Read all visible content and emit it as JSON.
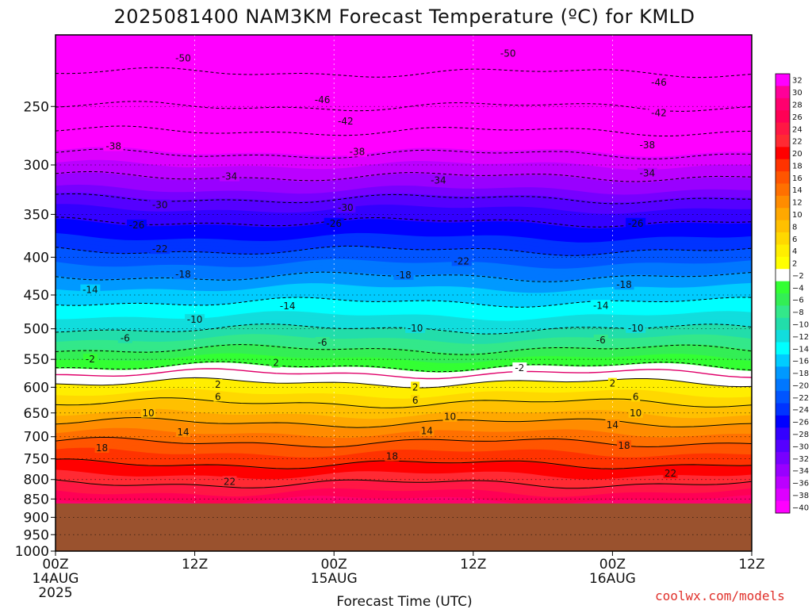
{
  "chart_data": {
    "type": "heatmap",
    "title": "2025081400 NAM3KM Forecast Temperature (ºC) for KMLD",
    "xlabel": "Forecast Time (UTC)",
    "ylabel": "",
    "y_axis_scale": "log-pressure",
    "y_ticks": [
      250,
      300,
      350,
      400,
      450,
      500,
      550,
      600,
      650,
      700,
      750,
      800,
      850,
      900,
      950,
      1000
    ],
    "y_range_hPa": [
      1000,
      200
    ],
    "x_ticks": [
      {
        "label": "00Z",
        "sub1": "14AUG",
        "sub2": "2025",
        "hour": 0
      },
      {
        "label": "12Z",
        "sub1": "",
        "sub2": "",
        "hour": 12
      },
      {
        "label": "00Z",
        "sub1": "15AUG",
        "sub2": "",
        "hour": 24
      },
      {
        "label": "12Z",
        "sub1": "",
        "sub2": "",
        "hour": 36
      },
      {
        "label": "00Z",
        "sub1": "16AUG",
        "sub2": "",
        "hour": 48
      },
      {
        "label": "12Z",
        "sub1": "",
        "sub2": "",
        "hour": 60
      }
    ],
    "x_range_hours": [
      0,
      60
    ],
    "grid": true,
    "colorbar_labels": [
      "32",
      "30",
      "28",
      "26",
      "24",
      "22",
      "20",
      "18",
      "16",
      "14",
      "12",
      "10",
      "8",
      "6",
      "4",
      "2",
      "−2",
      "−4",
      "−6",
      "−8",
      "−10",
      "−12",
      "−14",
      "−16",
      "−18",
      "−20",
      "−22",
      "−24",
      "−26",
      "−28",
      "−30",
      "−32",
      "−34",
      "−36",
      "−38",
      "−40"
    ],
    "colorbar_colors": [
      "#ff00ff",
      "#ff0099",
      "#ff006e",
      "#ff0055",
      "#ff1744",
      "#ff2a33",
      "#ff0000",
      "#ff3300",
      "#ff5500",
      "#ff7000",
      "#ff8c00",
      "#ffa800",
      "#ffc000",
      "#ffd800",
      "#ffee00",
      "#ffff00",
      "#ffffff",
      "#33ff33",
      "#33ee55",
      "#33e88a",
      "#22ddaa",
      "#11dddd",
      "#00ffff",
      "#00ccff",
      "#0099ff",
      "#0077ff",
      "#0055ff",
      "#0033ff",
      "#0000ff",
      "#3300ff",
      "#5500ff",
      "#7700ff",
      "#9900ff",
      "#bb00ff",
      "#dd00ff",
      "#ff00ff"
    ],
    "ground_color": "#9a522e",
    "ground_below_hPa": 862,
    "temperature_profile_hPa": [
      {
        "p": 200,
        "t": -54
      },
      {
        "p": 250,
        "t": -46
      },
      {
        "p": 300,
        "t": -36
      },
      {
        "p": 350,
        "t": -27
      },
      {
        "p": 400,
        "t": -21
      },
      {
        "p": 450,
        "t": -15
      },
      {
        "p": 500,
        "t": -10
      },
      {
        "p": 550,
        "t": -4
      },
      {
        "p": 575,
        "t": 0
      },
      {
        "p": 600,
        "t": 3
      },
      {
        "p": 650,
        "t": 8
      },
      {
        "p": 700,
        "t": 13
      },
      {
        "p": 750,
        "t": 17
      },
      {
        "p": 800,
        "t": 21
      },
      {
        "p": 850,
        "t": 26
      },
      {
        "p": 862,
        "t": 27
      }
    ],
    "contour_levels_dashed": [
      -50,
      -46,
      -42,
      -38,
      -34,
      -30,
      -26,
      -22,
      -18,
      -14,
      -10,
      -6,
      -2
    ],
    "contour_levels_solid": [
      2,
      6,
      10,
      14,
      18,
      22
    ],
    "contour_labels": [
      {
        "text": "-50",
        "h": 11,
        "p": 215
      },
      {
        "text": "-50",
        "h": 39,
        "p": 212
      },
      {
        "text": "-46",
        "h": 23,
        "p": 245
      },
      {
        "text": "-46",
        "h": 52,
        "p": 232
      },
      {
        "text": "-42",
        "h": 25,
        "p": 262
      },
      {
        "text": "-42",
        "h": 52,
        "p": 255
      },
      {
        "text": "-38",
        "h": 5,
        "p": 283
      },
      {
        "text": "-38",
        "h": 26,
        "p": 288
      },
      {
        "text": "-38",
        "h": 51,
        "p": 282
      },
      {
        "text": "-34",
        "h": 15,
        "p": 311
      },
      {
        "text": "-34",
        "h": 33,
        "p": 315
      },
      {
        "text": "-34",
        "h": 51,
        "p": 308
      },
      {
        "text": "-30",
        "h": 9,
        "p": 340
      },
      {
        "text": "-30",
        "h": 25,
        "p": 343
      },
      {
        "text": "-26",
        "h": 7,
        "p": 362
      },
      {
        "text": "-26",
        "h": 24,
        "p": 360
      },
      {
        "text": "-26",
        "h": 50,
        "p": 360
      },
      {
        "text": "-22",
        "h": 9,
        "p": 390
      },
      {
        "text": "-22",
        "h": 35,
        "p": 405
      },
      {
        "text": "-18",
        "h": 11,
        "p": 422
      },
      {
        "text": "-18",
        "h": 30,
        "p": 423
      },
      {
        "text": "-18",
        "h": 49,
        "p": 436
      },
      {
        "text": "-14",
        "h": 3,
        "p": 443
      },
      {
        "text": "-14",
        "h": 20,
        "p": 466
      },
      {
        "text": "-14",
        "h": 47,
        "p": 465
      },
      {
        "text": "-10",
        "h": 12,
        "p": 486
      },
      {
        "text": "-10",
        "h": 31,
        "p": 499
      },
      {
        "text": "-10",
        "h": 50,
        "p": 499
      },
      {
        "text": "-6",
        "h": 6,
        "p": 515
      },
      {
        "text": "-6",
        "h": 23,
        "p": 522
      },
      {
        "text": "-6",
        "h": 47,
        "p": 518
      },
      {
        "text": "-2",
        "h": 3,
        "p": 550
      },
      {
        "text": "2",
        "h": 19,
        "p": 556
      },
      {
        "text": "-2",
        "h": 40,
        "p": 565
      },
      {
        "text": "2",
        "h": 14,
        "p": 595
      },
      {
        "text": "2",
        "h": 31,
        "p": 600
      },
      {
        "text": "2",
        "h": 48,
        "p": 593
      },
      {
        "text": "6",
        "h": 14,
        "p": 618
      },
      {
        "text": "6",
        "h": 31,
        "p": 625
      },
      {
        "text": "6",
        "h": 50,
        "p": 618
      },
      {
        "text": "10",
        "h": 8,
        "p": 650
      },
      {
        "text": "10",
        "h": 34,
        "p": 658
      },
      {
        "text": "10",
        "h": 50,
        "p": 650
      },
      {
        "text": "14",
        "h": 11,
        "p": 690
      },
      {
        "text": "14",
        "h": 32,
        "p": 688
      },
      {
        "text": "14",
        "h": 48,
        "p": 675
      },
      {
        "text": "18",
        "h": 4,
        "p": 725
      },
      {
        "text": "18",
        "h": 29,
        "p": 744
      },
      {
        "text": "18",
        "h": 49,
        "p": 720
      },
      {
        "text": "22",
        "h": 15,
        "p": 805
      },
      {
        "text": "22",
        "h": 53,
        "p": 785
      }
    ]
  },
  "credit": "coolwx.com/models"
}
